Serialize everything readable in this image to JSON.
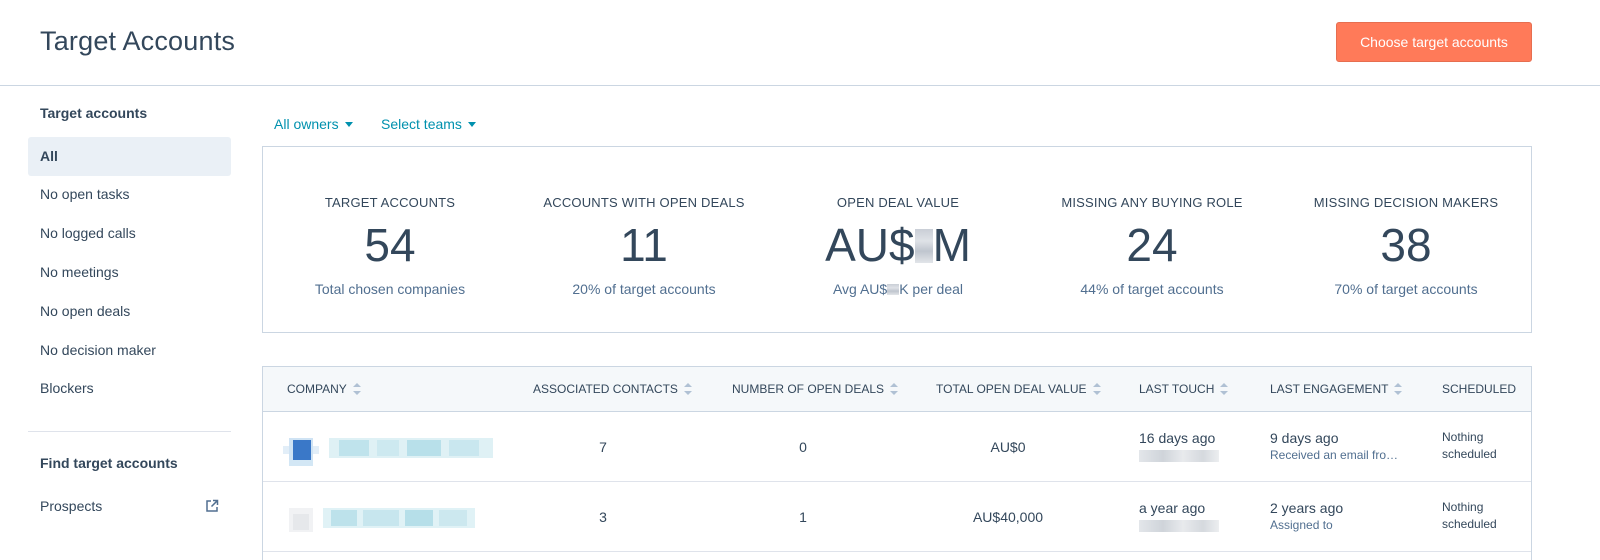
{
  "header": {
    "title": "Target Accounts",
    "primary_button": "Choose target accounts"
  },
  "sidebar": {
    "section_title": "Target accounts",
    "items": [
      {
        "label": "All",
        "active": true
      },
      {
        "label": "No open tasks"
      },
      {
        "label": "No logged calls"
      },
      {
        "label": "No meetings"
      },
      {
        "label": "No open deals"
      },
      {
        "label": "No decision maker"
      },
      {
        "label": "Blockers"
      }
    ],
    "find_title": "Find target accounts",
    "find_items": [
      {
        "label": "Prospects",
        "icon": "external-link-icon"
      }
    ]
  },
  "filters": {
    "owners": "All owners",
    "teams": "Select teams"
  },
  "stats": [
    {
      "label": "Target accounts",
      "value": "54",
      "sub": "Total chosen companies"
    },
    {
      "label": "Accounts with open deals",
      "value": "11",
      "sub": "20% of target accounts"
    },
    {
      "label": "Open deal value",
      "value_prefix": "AU$",
      "value_suffix": "M",
      "sub_prefix": "Avg AU$",
      "sub_suffix": "K per deal"
    },
    {
      "label": "Missing any buying role",
      "value": "24",
      "sub": "44% of target accounts"
    },
    {
      "label": "Missing decision makers",
      "value": "38",
      "sub": "70% of target accounts"
    }
  ],
  "table": {
    "columns": [
      "Company",
      "Associated contacts",
      "Number of open deals",
      "Total open deal value",
      "Last touch",
      "Last engagement",
      "Scheduled"
    ],
    "rows": [
      {
        "contacts": "7",
        "open_deals": "0",
        "deal_value": "AU$0",
        "last_touch": "16 days ago",
        "last_engagement": "9 days ago",
        "last_engagement_detail": "Received an email fro…",
        "scheduled": "Nothing scheduled"
      },
      {
        "contacts": "3",
        "open_deals": "1",
        "deal_value": "AU$40,000",
        "last_touch": "a year ago",
        "last_engagement": "2 years ago",
        "last_engagement_detail": "Assigned to",
        "scheduled": "Nothing scheduled"
      }
    ]
  },
  "colors": {
    "accent": "#ff7a59",
    "link": "#0091ae",
    "text": "#33475b",
    "border": "#cbd6e2"
  }
}
